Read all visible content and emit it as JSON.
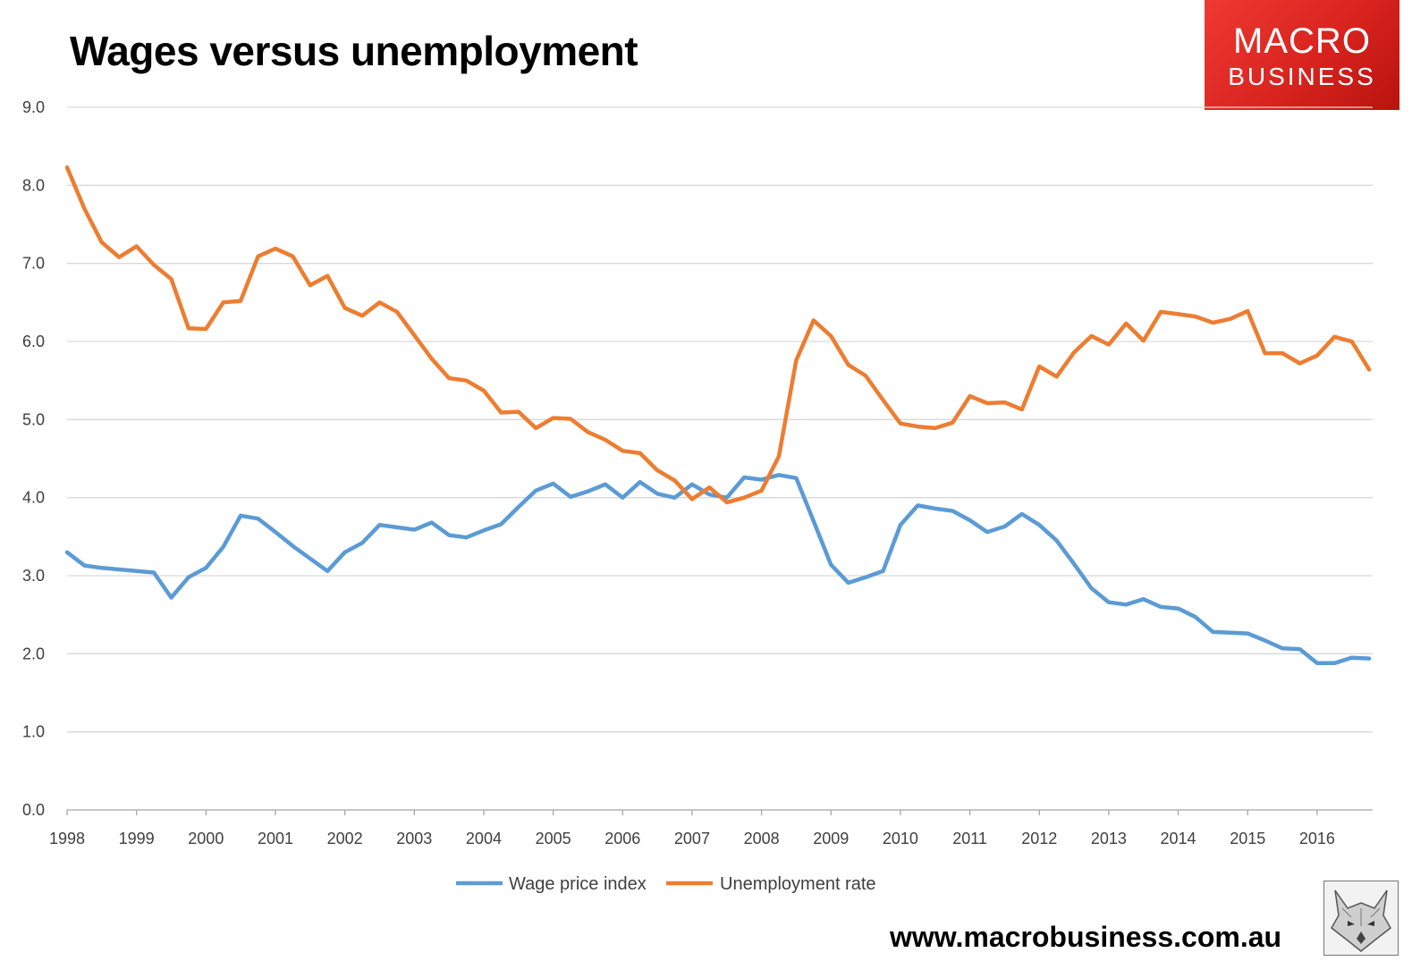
{
  "title": "Wages versus unemployment",
  "logo": {
    "line1": "MACRO",
    "line2": "BUSINESS"
  },
  "source_url": "www.macrobusiness.com.au",
  "chart_data": {
    "type": "line",
    "title": "Wages versus unemployment",
    "xlabel": "",
    "ylabel": "",
    "xlim": [
      1998,
      2016.8
    ],
    "ylim": [
      0,
      9
    ],
    "y_ticks": [
      "0.0",
      "1.0",
      "2.0",
      "3.0",
      "4.0",
      "5.0",
      "6.0",
      "7.0",
      "8.0",
      "9.0"
    ],
    "x_ticks": [
      "1998",
      "1999",
      "2000",
      "2001",
      "2002",
      "2003",
      "2004",
      "2005",
      "2006",
      "2007",
      "2008",
      "2009",
      "2010",
      "2011",
      "2012",
      "2013",
      "2014",
      "2015",
      "2016"
    ],
    "grid": "horizontal",
    "legend_position": "bottom",
    "series": [
      {
        "name": "Wage price index",
        "color": "#5b9bd5",
        "x": [
          1998.0,
          1998.25,
          1998.5,
          1998.75,
          1999.0,
          1999.25,
          1999.5,
          1999.75,
          2000.0,
          2000.25,
          2000.5,
          2000.75,
          2001.0,
          2001.25,
          2001.5,
          2001.75,
          2002.0,
          2002.25,
          2002.5,
          2002.75,
          2003.0,
          2003.25,
          2003.5,
          2003.75,
          2004.0,
          2004.25,
          2004.5,
          2004.75,
          2005.0,
          2005.25,
          2005.5,
          2005.75,
          2006.0,
          2006.25,
          2006.5,
          2006.75,
          2007.0,
          2007.25,
          2007.5,
          2007.75,
          2008.0,
          2008.25,
          2008.5,
          2008.75,
          2009.0,
          2009.25,
          2009.5,
          2009.75,
          2010.0,
          2010.25,
          2010.5,
          2010.75,
          2011.0,
          2011.25,
          2011.5,
          2011.75,
          2012.0,
          2012.25,
          2012.5,
          2012.75,
          2013.0,
          2013.25,
          2013.5,
          2013.75,
          2014.0,
          2014.25,
          2014.5,
          2014.75,
          2015.0,
          2015.25,
          2015.5,
          2015.75,
          2016.0,
          2016.25,
          2016.5,
          2016.75
        ],
        "values": [
          3.3,
          3.13,
          3.1,
          3.08,
          3.06,
          3.04,
          2.72,
          2.98,
          3.1,
          3.37,
          3.77,
          3.73,
          3.56,
          3.38,
          3.22,
          3.06,
          3.3,
          3.42,
          3.65,
          3.62,
          3.59,
          3.68,
          3.52,
          3.49,
          3.58,
          3.66,
          3.88,
          4.09,
          4.18,
          4.01,
          4.08,
          4.17,
          4.0,
          4.2,
          4.05,
          4.0,
          4.17,
          4.04,
          4.0,
          4.26,
          4.23,
          4.29,
          4.25,
          3.7,
          3.14,
          2.91,
          2.98,
          3.06,
          3.65,
          3.9,
          3.86,
          3.83,
          3.71,
          3.56,
          3.63,
          3.79,
          3.65,
          3.45,
          3.15,
          2.84,
          2.66,
          2.63,
          2.7,
          2.6,
          2.58,
          2.47,
          2.28,
          2.27,
          2.26,
          2.17,
          2.07,
          2.06,
          1.88,
          1.88,
          1.95,
          1.94
        ]
      },
      {
        "name": "Unemployment rate",
        "color": "#ed7d31",
        "x": [
          1998.0,
          1998.25,
          1998.5,
          1998.75,
          1999.0,
          1999.25,
          1999.5,
          1999.75,
          2000.0,
          2000.25,
          2000.5,
          2000.75,
          2001.0,
          2001.25,
          2001.5,
          2001.75,
          2002.0,
          2002.25,
          2002.5,
          2002.75,
          2003.0,
          2003.25,
          2003.5,
          2003.75,
          2004.0,
          2004.25,
          2004.5,
          2004.75,
          2005.0,
          2005.25,
          2005.5,
          2005.75,
          2006.0,
          2006.25,
          2006.5,
          2006.75,
          2007.0,
          2007.25,
          2007.5,
          2007.75,
          2008.0,
          2008.25,
          2008.5,
          2008.75,
          2009.0,
          2009.25,
          2009.5,
          2009.75,
          2010.0,
          2010.25,
          2010.5,
          2010.75,
          2011.0,
          2011.25,
          2011.5,
          2011.75,
          2012.0,
          2012.25,
          2012.5,
          2012.75,
          2013.0,
          2013.25,
          2013.5,
          2013.75,
          2014.0,
          2014.25,
          2014.5,
          2014.75,
          2015.0,
          2015.25,
          2015.5,
          2015.75,
          2016.0,
          2016.25,
          2016.5,
          2016.75
        ],
        "values": [
          8.23,
          7.7,
          7.27,
          7.08,
          7.22,
          6.98,
          6.8,
          6.17,
          6.16,
          6.5,
          6.52,
          7.09,
          7.19,
          7.09,
          6.72,
          6.84,
          6.43,
          6.33,
          6.5,
          6.38,
          6.08,
          5.78,
          5.53,
          5.5,
          5.37,
          5.09,
          5.1,
          4.89,
          5.02,
          5.01,
          4.84,
          4.74,
          4.6,
          4.57,
          4.35,
          4.22,
          3.98,
          4.13,
          3.94,
          4.0,
          4.09,
          4.53,
          5.76,
          6.27,
          6.07,
          5.7,
          5.56,
          5.25,
          4.95,
          4.91,
          4.89,
          4.96,
          5.3,
          5.21,
          5.22,
          5.13,
          5.68,
          5.55,
          5.86,
          6.07,
          5.96,
          6.23,
          6.01,
          6.38,
          6.35,
          6.32,
          6.24,
          6.29,
          6.39,
          5.85,
          5.85,
          5.72,
          5.82,
          6.06,
          6.0,
          5.64
        ]
      }
    ]
  }
}
